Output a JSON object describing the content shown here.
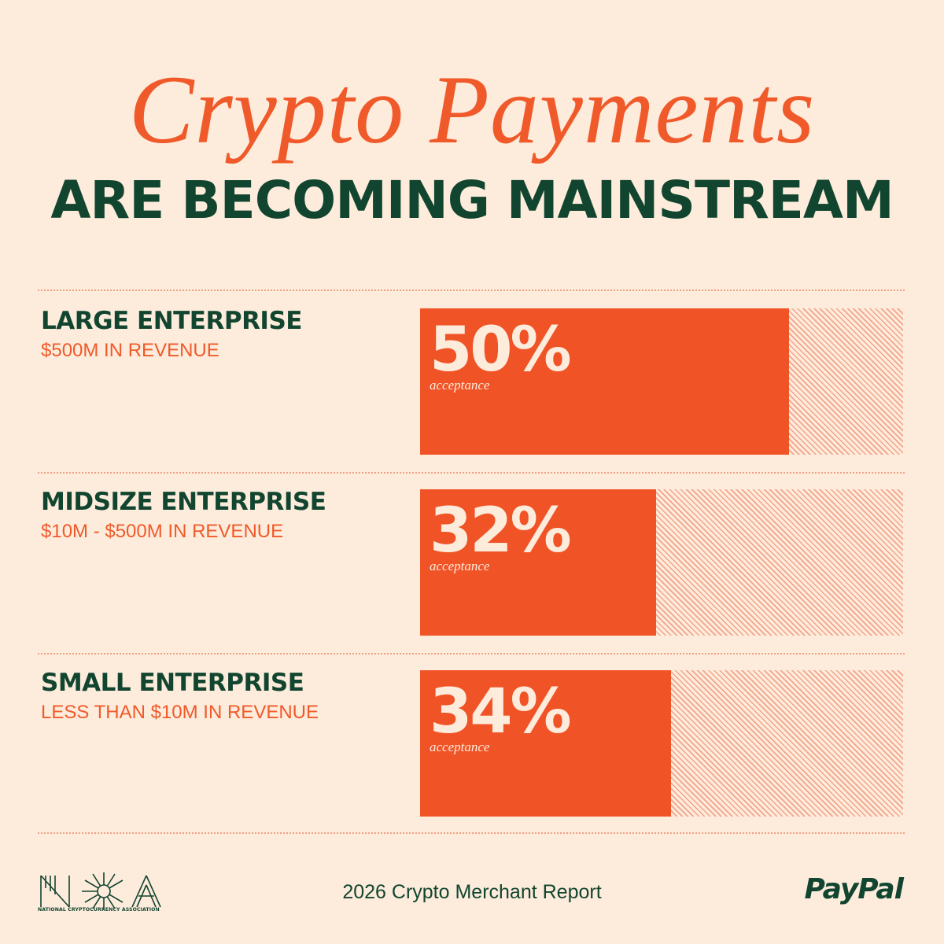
{
  "header": {
    "title_script": "Crypto Payments",
    "title_block": "ARE BECOMING MAINSTREAM"
  },
  "chart_data": {
    "type": "bar",
    "orientation": "horizontal",
    "unit": "%",
    "max": 100,
    "categories": [
      "LARGE ENTERPRISE",
      "MIDSIZE ENTERPRISE",
      "SMALL ENTERPRISE"
    ],
    "subtitles": [
      "$500M IN REVENUE",
      "$10M - $500M IN REVENUE",
      "LESS THAN $10M IN REVENUE"
    ],
    "values": [
      50,
      32,
      34
    ],
    "labels": [
      "50%",
      "32%",
      "34%"
    ],
    "value_caption": "acceptance"
  },
  "footer": {
    "report": "2026 Crypto Merchant Report",
    "nca_name": "NATIONAL CRYPTOCURRENCY ASSOCIATION",
    "paypal": "PayPal"
  },
  "colors": {
    "background": "#fdecdc",
    "accent_orange": "#f05326",
    "dark_green": "#12452f",
    "hatch": "#f3a28a"
  }
}
